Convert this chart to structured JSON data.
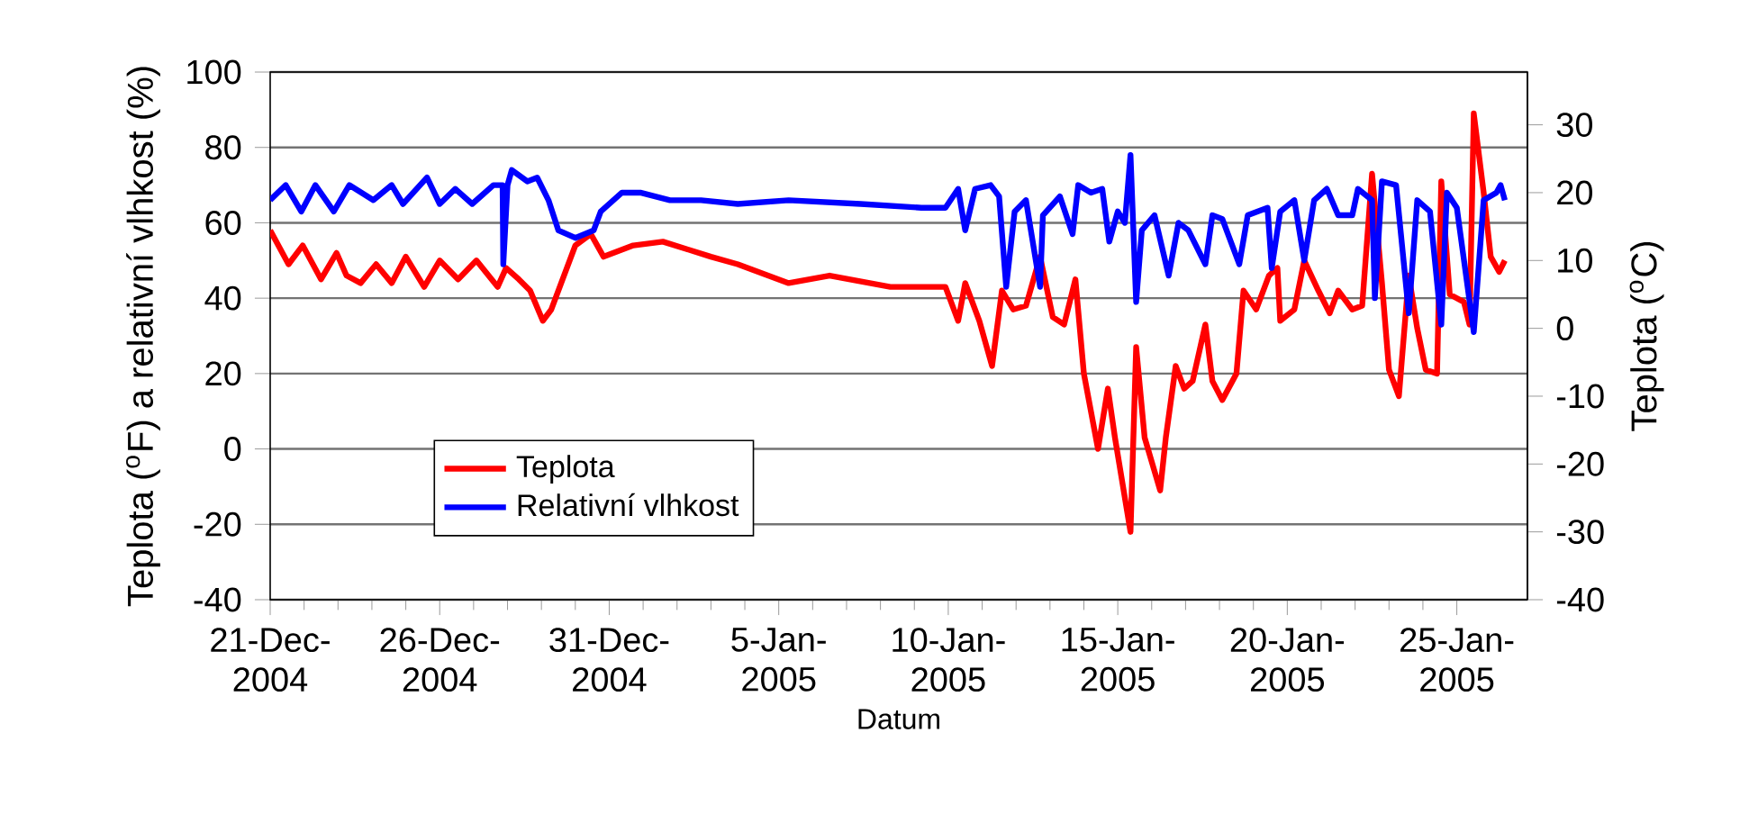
{
  "chart_data": {
    "type": "line",
    "xlabel": "Datum",
    "ylabel": "Teplota ($^{o}$F) a relativní vlhkost (%)",
    "y2label": "Teplota ($^{o}$C)",
    "xlim": [
      "2004-12-21T00:00",
      "2005-01-27T02:00"
    ],
    "xticks": [
      {
        "value": "2004-12-21",
        "label": "21-Dec-2004"
      },
      {
        "value": "2004-12-26",
        "label": "26-Dec-2004"
      },
      {
        "value": "2004-12-31",
        "label": "31-Dec-2004"
      },
      {
        "value": "2005-01-05",
        "label": "5-Jan-2005"
      },
      {
        "value": "2005-01-10",
        "label": "10-Jan-2005"
      },
      {
        "value": "2005-01-15",
        "label": "15-Jan-2005"
      },
      {
        "value": "2005-01-20",
        "label": "20-Jan-2005"
      },
      {
        "value": "2005-01-25",
        "label": "25-Jan-2005"
      }
    ],
    "ylim": [
      -40,
      100
    ],
    "yticks": [
      -40,
      -20,
      0,
      20,
      40,
      60,
      80,
      100
    ],
    "y2lim": [
      -40,
      37.78
    ],
    "y2ticks": [
      -40,
      -30,
      -20,
      -10,
      0,
      10,
      20,
      30
    ],
    "grid": "y",
    "legend": "bottom left",
    "line_style": "solid",
    "series": [
      {
        "name": "Teplota",
        "color": "#ff0000",
        "x": [
          "2004-12-21T00:00",
          "2004-12-21T13:00",
          "2004-12-21T23:00",
          "2004-12-22T12:00",
          "2004-12-22T23:00",
          "2004-12-23T06:00",
          "2004-12-23T16:00",
          "2004-12-24T03:00",
          "2004-12-24T14:00",
          "2004-12-25T00:00",
          "2004-12-25T13:00",
          "2004-12-26T00:00",
          "2004-12-26T13:00",
          "2004-12-27T02:00",
          "2004-12-27T17:00",
          "2004-12-27T23:00",
          "2004-12-28T08:00",
          "2004-12-28T16:00",
          "2004-12-29T01:00",
          "2004-12-29T07:00",
          "2004-12-29T14:00",
          "2004-12-30T00:00",
          "2004-12-30T11:00",
          "2004-12-30T20:00",
          "2004-12-31T17:00",
          "2005-01-01T14:00",
          "2005-01-02T07:00",
          "2005-01-03T00:00",
          "2005-01-03T19:00",
          "2005-01-05T07:00",
          "2005-01-06T12:00",
          "2005-01-08T07:00",
          "2005-01-09T22:00",
          "2005-01-10T07:00",
          "2005-01-10T12:00",
          "2005-01-10T22:00",
          "2005-01-11T07:00",
          "2005-01-11T14:00",
          "2005-01-11T22:00",
          "2005-01-12T07:00",
          "2005-01-12T17:00",
          "2005-01-13T02:00",
          "2005-01-13T10:00",
          "2005-01-13T18:00",
          "2005-01-14T00:00",
          "2005-01-14T10:00",
          "2005-01-14T17:00",
          "2005-01-14T22:00",
          "2005-01-15T09:00",
          "2005-01-15T13:00",
          "2005-01-15T19:00",
          "2005-01-16T06:00",
          "2005-01-16T10:00",
          "2005-01-16T17:00",
          "2005-01-16T23:00",
          "2005-01-17T05:00",
          "2005-01-17T14:00",
          "2005-01-17T19:00",
          "2005-01-18T02:00",
          "2005-01-18T12:00",
          "2005-01-18T17:00",
          "2005-01-19T02:00",
          "2005-01-19T11:00",
          "2005-01-19T17:00",
          "2005-01-19T19:00",
          "2005-01-20T05:00",
          "2005-01-20T12:00",
          "2005-01-20T22:00",
          "2005-01-21T06:00",
          "2005-01-21T12:00",
          "2005-01-21T22:00",
          "2005-01-22T05:00",
          "2005-01-22T12:00",
          "2005-01-22T19:00",
          "2005-01-23T00:00",
          "2005-01-23T07:00",
          "2005-01-23T14:00",
          "2005-01-23T20:00",
          "2005-01-24T02:00",
          "2005-01-24T10:00",
          "2005-01-24T13:00",
          "2005-01-24T19:00",
          "2005-01-25T05:00",
          "2005-01-25T09:00",
          "2005-01-25T12:00",
          "2005-01-25T19:00",
          "2005-01-26T00:00",
          "2005-01-26T06:00",
          "2005-01-26T10:00"
        ],
        "values": [
          58,
          49,
          54,
          45,
          52,
          46,
          44,
          49,
          44,
          51,
          43,
          50,
          45,
          50,
          43,
          48,
          45,
          42,
          34,
          37,
          44,
          54,
          57,
          51,
          54,
          55,
          53,
          51,
          49,
          44,
          46,
          43,
          43,
          34,
          44,
          34,
          22,
          42,
          37,
          38,
          51,
          35,
          33,
          45,
          20,
          0,
          16,
          3,
          -22,
          27,
          3,
          -11,
          3,
          22,
          16,
          18,
          33,
          18,
          13,
          20,
          42,
          37,
          46,
          48,
          34,
          37,
          50,
          42,
          36,
          42,
          37,
          38,
          73,
          44,
          21,
          14,
          46,
          32,
          21,
          20,
          71,
          41,
          39,
          33,
          89,
          68,
          51,
          47,
          50
        ]
      },
      {
        "name": "Relativní vlhkost",
        "color": "#0000ff",
        "x": [
          "2004-12-21T00:00",
          "2004-12-21T11:00",
          "2004-12-21T22:00",
          "2004-12-22T08:00",
          "2004-12-22T21:00",
          "2004-12-23T08:00",
          "2004-12-24T01:00",
          "2004-12-24T14:00",
          "2004-12-24T22:00",
          "2004-12-25T15:00",
          "2004-12-26T00:00",
          "2004-12-26T11:00",
          "2004-12-26T23:00",
          "2004-12-27T14:00",
          "2004-12-27T20:30",
          "2004-12-27T21:00",
          "2004-12-28T00:00",
          "2004-12-28T03:00",
          "2004-12-28T14:00",
          "2004-12-28T21:00",
          "2004-12-29T05:00",
          "2004-12-29T12:00",
          "2004-12-30T00:00",
          "2004-12-30T13:00",
          "2004-12-30T18:00",
          "2004-12-31T09:00",
          "2004-12-31T22:00",
          "2005-01-01T19:00",
          "2005-01-02T17:00",
          "2005-01-03T19:00",
          "2005-01-05T07:00",
          "2005-01-07T10:00",
          "2005-01-09T05:00",
          "2005-01-09T22:00",
          "2005-01-10T07:00",
          "2005-01-10T12:00",
          "2005-01-10T19:00",
          "2005-01-11T06:00",
          "2005-01-11T12:00",
          "2005-01-11T17:00",
          "2005-01-11T23:00",
          "2005-01-12T07:00",
          "2005-01-12T17:00",
          "2005-01-12T19:00",
          "2005-01-13T07:00",
          "2005-01-13T16:00",
          "2005-01-13T20:00",
          "2005-01-14T05:00",
          "2005-01-14T13:00",
          "2005-01-14T18:00",
          "2005-01-15T00:00",
          "2005-01-15T05:00",
          "2005-01-15T09:00",
          "2005-01-15T13:00",
          "2005-01-15T17:00",
          "2005-01-16T02:00",
          "2005-01-16T12:00",
          "2005-01-16T19:00",
          "2005-01-17T02:00",
          "2005-01-17T14:00",
          "2005-01-17T19:00",
          "2005-01-18T02:00",
          "2005-01-18T14:00",
          "2005-01-18T20:00",
          "2005-01-19T10:00",
          "2005-01-19T13:00",
          "2005-01-19T19:00",
          "2005-01-20T05:00",
          "2005-01-20T12:00",
          "2005-01-20T19:00",
          "2005-01-21T04:00",
          "2005-01-21T12:00",
          "2005-01-21T22:00",
          "2005-01-22T02:00",
          "2005-01-22T12:00",
          "2005-01-22T14:00",
          "2005-01-22T19:00",
          "2005-01-23T05:00",
          "2005-01-23T14:00",
          "2005-01-23T20:00",
          "2005-01-24T05:00",
          "2005-01-24T13:00",
          "2005-01-24T17:00",
          "2005-01-25T00:00",
          "2005-01-25T12:00",
          "2005-01-25T19:00",
          "2005-01-26T04:00",
          "2005-01-26T07:00",
          "2005-01-26T10:00"
        ],
        "values": [
          66,
          70,
          63,
          70,
          63,
          70,
          66,
          70,
          65,
          72,
          65,
          69,
          65,
          70,
          70,
          49,
          70,
          74,
          71,
          72,
          66,
          58,
          56,
          58,
          63,
          68,
          68,
          66,
          66,
          65,
          66,
          65,
          64,
          64,
          69,
          58,
          69,
          70,
          67,
          43,
          63,
          66,
          43,
          62,
          67,
          57,
          70,
          68,
          69,
          55,
          63,
          60,
          78,
          39,
          58,
          62,
          46,
          60,
          58,
          49,
          62,
          61,
          49,
          62,
          64,
          48,
          63,
          66,
          50,
          66,
          69,
          62,
          62,
          69,
          66,
          40,
          71,
          70,
          36,
          66,
          63,
          33,
          68,
          64,
          31,
          66,
          68,
          70,
          66
        ]
      }
    ]
  }
}
